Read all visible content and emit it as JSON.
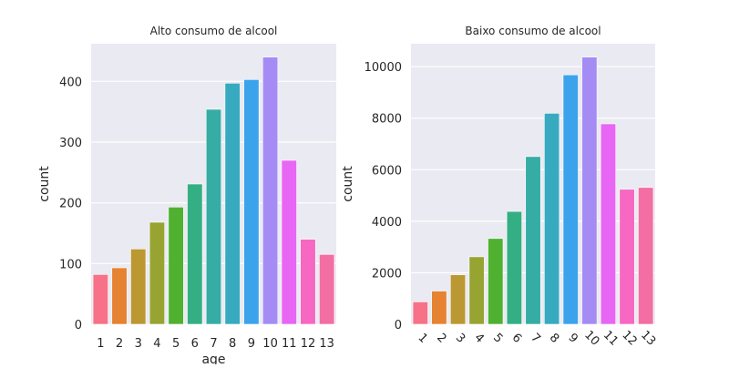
{
  "chart_data": [
    {
      "type": "bar",
      "title": "Alto consumo de alcool",
      "xlabel": "age",
      "ylabel": "count",
      "categories": [
        "1",
        "2",
        "3",
        "4",
        "5",
        "6",
        "7",
        "8",
        "9",
        "10",
        "11",
        "12",
        "13"
      ],
      "values": [
        82,
        93,
        124,
        168,
        193,
        231,
        354,
        397,
        403,
        440,
        270,
        140,
        115
      ],
      "ylim": [
        0,
        462
      ],
      "yticks": [
        0,
        100,
        200,
        300,
        400
      ],
      "grid": true,
      "x_tick_rotation": 0
    },
    {
      "type": "bar",
      "title": "Baixo consumo de alcool",
      "xlabel": "",
      "ylabel": "count",
      "categories": [
        "1",
        "2",
        "3",
        "4",
        "5",
        "6",
        "7",
        "8",
        "9",
        "10",
        "11",
        "12",
        "13"
      ],
      "values": [
        870,
        1290,
        1920,
        2620,
        3330,
        4380,
        6510,
        8190,
        9680,
        10370,
        7780,
        5240,
        5310
      ],
      "ylim": [
        0,
        10890
      ],
      "yticks": [
        0,
        2000,
        4000,
        6000,
        8000,
        10000
      ],
      "grid": true,
      "x_tick_rotation": 45
    }
  ],
  "colors": [
    "#f77189",
    "#e68332",
    "#bb9832",
    "#97a431",
    "#50b131",
    "#34af84",
    "#36ada4",
    "#38aabf",
    "#3ba3ec",
    "#a48cf4",
    "#e866f4",
    "#f668c2",
    "#f36ea2"
  ],
  "background": {
    "axes": "#eaeaf2",
    "grid": "#ffffff"
  }
}
